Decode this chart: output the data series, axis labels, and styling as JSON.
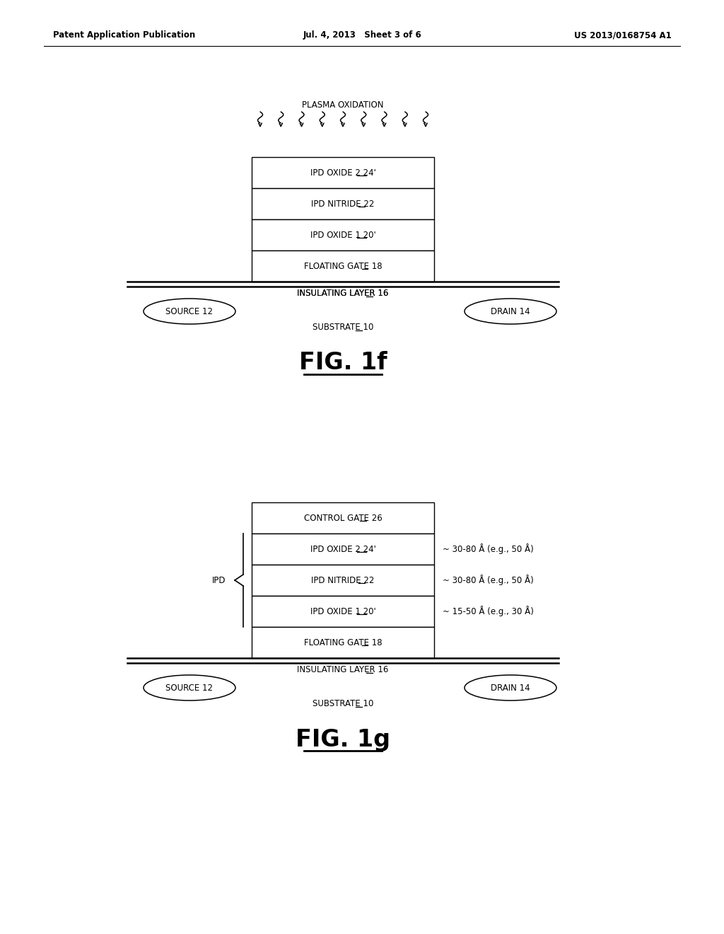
{
  "bg_color": "#ffffff",
  "header_left": "Patent Application Publication",
  "header_mid": "Jul. 4, 2013   Sheet 3 of 6",
  "header_right": "US 2013/0168754 A1",
  "fig1f_label": "FIG. 1f",
  "fig1g_label": "FIG. 1g",
  "plasma_text": "PLASMA OXIDATION",
  "insulating_layer_text": "INSULATING LAYER 16",
  "source_text": "SOURCE 12",
  "drain_text": "DRAIN 14",
  "substrate_text": "SUBSTRATE 10",
  "ipd_text": "IPD",
  "fig1f_layers": [
    {
      "label": "IPD OXIDE 2 24'",
      "plain": "IPD OXIDE 2 ",
      "under": "24'"
    },
    {
      "label": "IPD NITRIDE 22",
      "plain": "IPD NITRIDE ",
      "under": "22"
    },
    {
      "label": "IPD OXIDE 1 20'",
      "plain": "IPD OXIDE 1 ",
      "under": "20'"
    },
    {
      "label": "FLOATING GATE 18",
      "plain": "FLOATING GATE ",
      "under": "18"
    }
  ],
  "fig1g_layers": [
    {
      "label": "CONTROL GATE 26",
      "plain": "CONTROL GATE ",
      "under": "26",
      "annotation": ""
    },
    {
      "label": "IPD OXIDE 2 24'",
      "plain": "IPD OXIDE 2 ",
      "under": "24'",
      "annotation": "~ 30-80 Å (e.g., 50 Å)"
    },
    {
      "label": "IPD NITRIDE 22",
      "plain": "IPD NITRIDE ",
      "under": "22",
      "annotation": "~ 30-80 Å (e.g., 50 Å)"
    },
    {
      "label": "IPD OXIDE 1 20'",
      "plain": "IPD OXIDE 1 ",
      "under": "20'",
      "annotation": "~ 15-50 Å (e.g., 30 Å)"
    },
    {
      "label": "FLOATING GATE 18",
      "plain": "FLOATING GATE ",
      "under": "18",
      "annotation": ""
    }
  ]
}
